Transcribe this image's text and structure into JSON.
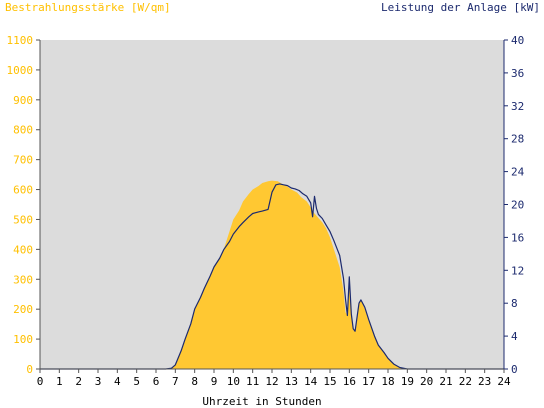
{
  "chart_data": {
    "type": "area",
    "title_left": "Bestrahlungsstärke [W/qm]",
    "title_right": "Leistung der Anlage [kW]",
    "xlabel": "Uhrzeit in Stunden",
    "x_ticks": [
      "0",
      "1",
      "2",
      "3",
      "4",
      "5",
      "6",
      "7",
      "8",
      "9",
      "10",
      "11",
      "12",
      "13",
      "14",
      "15",
      "16",
      "17",
      "18",
      "19",
      "20",
      "21",
      "22",
      "23",
      "24"
    ],
    "y_left_ticks": [
      "0",
      "100",
      "200",
      "300",
      "400",
      "500",
      "600",
      "700",
      "800",
      "900",
      "1000",
      "1100"
    ],
    "y_right_ticks": [
      "0",
      "4",
      "8",
      "12",
      "16",
      "20",
      "24",
      "28",
      "32",
      "36",
      "40"
    ],
    "xlim": [
      0,
      24
    ],
    "y_left_lim": [
      0,
      1100
    ],
    "y_right_lim": [
      0,
      40
    ],
    "grid": false,
    "colors": {
      "background": "#dcdcdc",
      "irradiance_fill": "#ffc832",
      "power_line": "#1c2a6e",
      "left_axis_text": "#ffc000",
      "right_axis_text": "#1c2a6e",
      "x_axis_text": "#000000"
    },
    "series": [
      {
        "axis": "left",
        "style": "area",
        "x": [
          0,
          6.5,
          6.8,
          7.0,
          7.3,
          7.5,
          7.8,
          8.0,
          8.3,
          8.5,
          8.8,
          9.0,
          9.3,
          9.5,
          9.8,
          10.0,
          10.3,
          10.5,
          10.8,
          11.0,
          11.3,
          11.5,
          11.8,
          12.0,
          12.3,
          12.5,
          12.8,
          13.0,
          13.3,
          13.5,
          13.8,
          14.0,
          14.2,
          14.4,
          14.6,
          14.8,
          15.0,
          15.2,
          15.5,
          15.7,
          15.8,
          15.9,
          16.0,
          16.05,
          16.1,
          16.2,
          16.3,
          16.5,
          16.6,
          16.8,
          17.0,
          17.3,
          17.5,
          17.8,
          18.0,
          18.3,
          18.6,
          19.0,
          24
        ],
        "y": [
          0,
          0,
          3,
          15,
          60,
          100,
          150,
          200,
          240,
          270,
          310,
          340,
          370,
          400,
          460,
          500,
          530,
          560,
          585,
          600,
          612,
          622,
          628,
          630,
          628,
          620,
          610,
          600,
          590,
          575,
          560,
          540,
          520,
          505,
          490,
          470,
          440,
          400,
          340,
          260,
          190,
          180,
          300,
          240,
          180,
          130,
          125,
          220,
          230,
          200,
          160,
          110,
          80,
          55,
          35,
          18,
          6,
          0,
          0
        ]
      },
      {
        "axis": "right",
        "style": "line",
        "x": [
          0,
          6.5,
          6.8,
          7.0,
          7.3,
          7.5,
          7.8,
          8.0,
          8.3,
          8.5,
          8.8,
          9.0,
          9.3,
          9.5,
          9.8,
          10.0,
          10.3,
          10.5,
          10.8,
          11.0,
          11.3,
          11.5,
          11.8,
          12.0,
          12.2,
          12.4,
          12.6,
          12.8,
          13.0,
          13.2,
          13.4,
          13.6,
          13.8,
          14.0,
          14.1,
          14.2,
          14.3,
          14.4,
          14.6,
          14.8,
          15.0,
          15.2,
          15.5,
          15.7,
          15.8,
          15.9,
          16.0,
          16.05,
          16.1,
          16.2,
          16.3,
          16.5,
          16.6,
          16.8,
          17.0,
          17.3,
          17.5,
          17.8,
          18.0,
          18.3,
          18.6,
          19.0,
          24
        ],
        "y": [
          0,
          0,
          0.1,
          0.5,
          2.2,
          3.6,
          5.5,
          7.3,
          8.7,
          9.8,
          11.3,
          12.4,
          13.5,
          14.5,
          15.5,
          16.4,
          17.3,
          17.8,
          18.5,
          18.9,
          19.1,
          19.2,
          19.4,
          21.5,
          22.4,
          22.5,
          22.4,
          22.3,
          22.0,
          21.9,
          21.7,
          21.3,
          21.0,
          20.2,
          18.5,
          21.0,
          19.5,
          18.8,
          18.3,
          17.5,
          16.7,
          15.6,
          13.8,
          11.0,
          8.5,
          6.5,
          11.2,
          9.0,
          6.7,
          4.9,
          4.6,
          8.0,
          8.4,
          7.5,
          6.0,
          4.0,
          2.9,
          2.0,
          1.3,
          0.6,
          0.2,
          0,
          0
        ]
      }
    ]
  }
}
